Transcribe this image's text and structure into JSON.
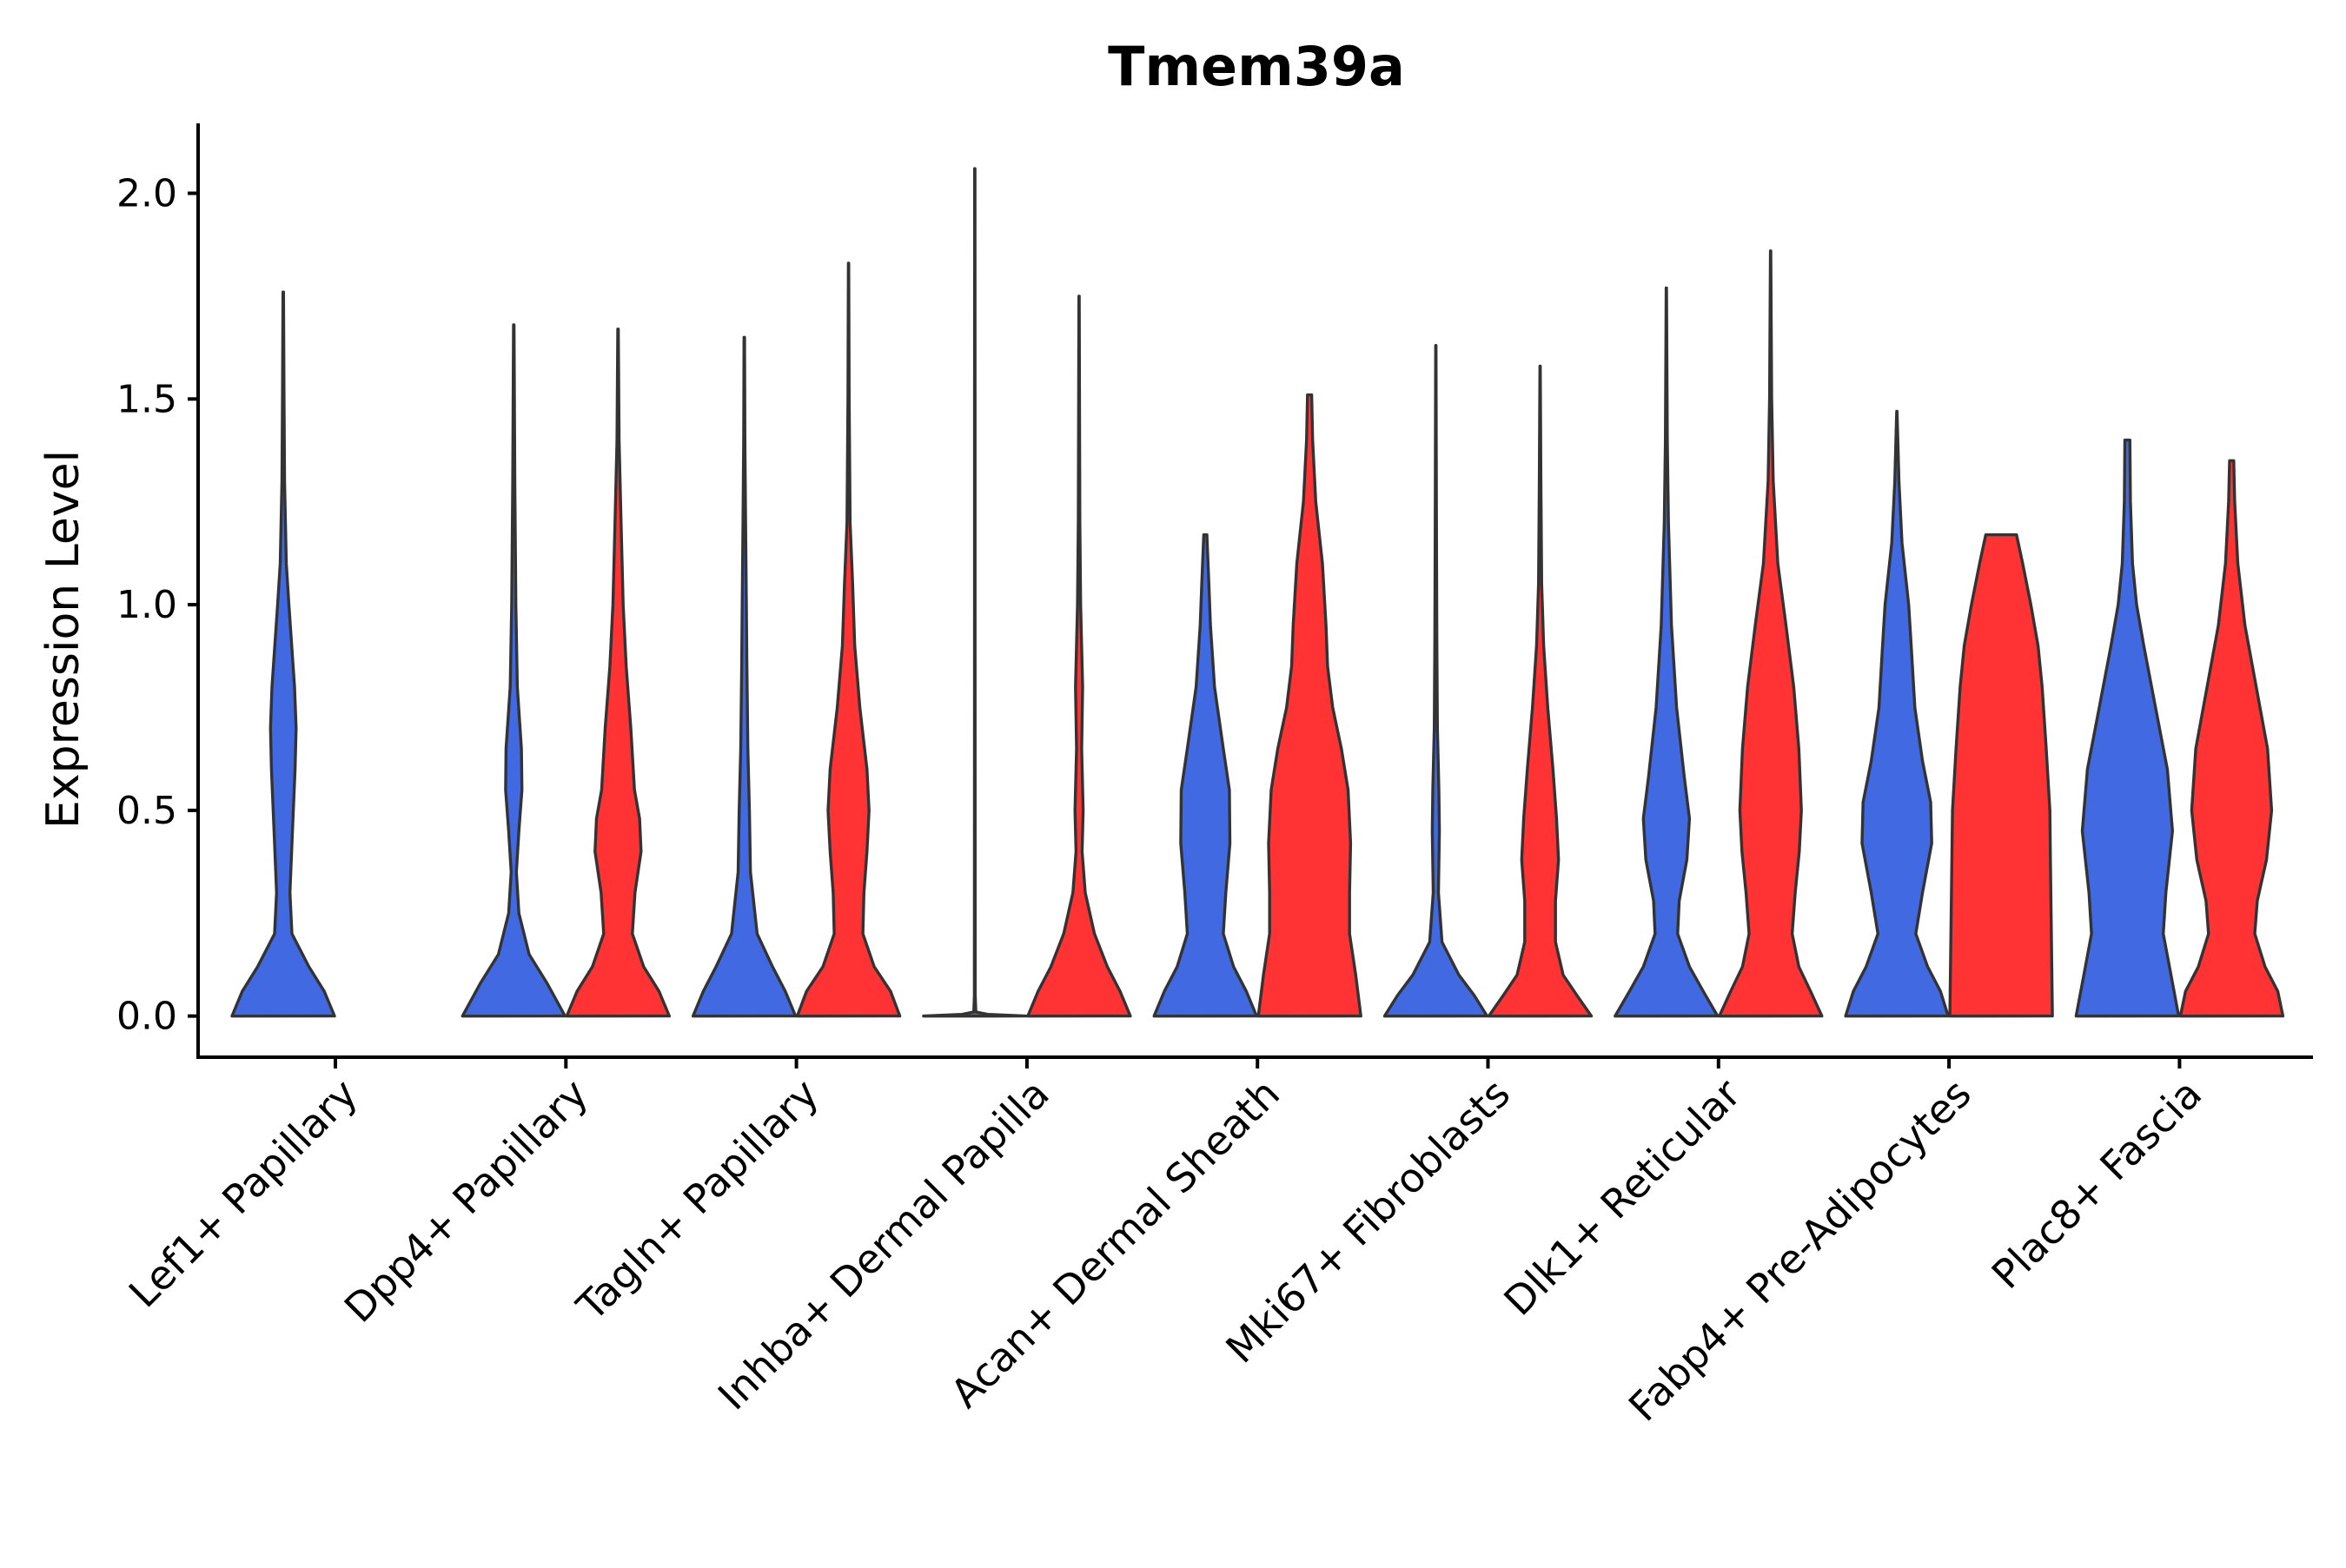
{
  "chart_data": {
    "type": "violin",
    "title": "Tmem39a",
    "xlabel": "",
    "ylabel": "Expression Level",
    "ylim": [
      -0.1,
      2.17
    ],
    "yticks": [
      0.0,
      0.5,
      1.0,
      1.5,
      2.0
    ],
    "ytick_labels": [
      "0.0",
      "0.5",
      "1.0",
      "1.5",
      "2.0"
    ],
    "categories": [
      "Lef1+ Papillary",
      "Dpp4+ Papillary",
      "Tagln+ Papillary",
      "Inhba+ Dermal Papilla",
      "Acan+ Dermal Sheath",
      "Mki67+ Fibroblasts",
      "Dlk1+ Reticular",
      "Fabp4+ Pre-Adipocytes",
      "Plac8+ Fascia"
    ],
    "series": [
      {
        "name": "blue",
        "color": "#4169E1",
        "violins": [
          {
            "max": 1.76,
            "profile": [
              [
                0.0,
                1.0
              ],
              [
                0.06,
                0.8
              ],
              [
                0.12,
                0.5
              ],
              [
                0.2,
                0.17
              ],
              [
                0.3,
                0.13
              ],
              [
                0.45,
                0.18
              ],
              [
                0.6,
                0.23
              ],
              [
                0.7,
                0.25
              ],
              [
                0.8,
                0.22
              ],
              [
                1.0,
                0.11
              ],
              [
                1.1,
                0.06
              ],
              [
                1.3,
                0.025
              ],
              [
                1.5,
                0.015
              ],
              [
                1.76,
                0.005
              ]
            ]
          },
          {
            "max": 1.68,
            "profile": [
              [
                0.0,
                1.0
              ],
              [
                0.08,
                0.65
              ],
              [
                0.15,
                0.3
              ],
              [
                0.25,
                0.1
              ],
              [
                0.35,
                0.05
              ],
              [
                0.45,
                0.1
              ],
              [
                0.55,
                0.16
              ],
              [
                0.65,
                0.15
              ],
              [
                0.8,
                0.07
              ],
              [
                1.0,
                0.04
              ],
              [
                1.3,
                0.02
              ],
              [
                1.68,
                0.005
              ]
            ]
          },
          {
            "max": 1.65,
            "profile": [
              [
                0.0,
                1.0
              ],
              [
                0.06,
                0.8
              ],
              [
                0.12,
                0.55
              ],
              [
                0.2,
                0.25
              ],
              [
                0.35,
                0.12
              ],
              [
                0.5,
                0.1
              ],
              [
                0.65,
                0.07
              ],
              [
                0.85,
                0.05
              ],
              [
                1.0,
                0.04
              ],
              [
                1.2,
                0.025
              ],
              [
                1.4,
                0.012
              ],
              [
                1.65,
                0.005
              ]
            ]
          },
          {
            "max": 2.06,
            "profile": [
              [
                0.0,
                1.0
              ],
              [
                0.004,
                0.25
              ],
              [
                0.01,
                0.02
              ],
              [
                0.05,
                0.008
              ],
              [
                0.5,
                0.006
              ],
              [
                1.0,
                0.005
              ],
              [
                1.5,
                0.005
              ],
              [
                2.06,
                0.004
              ]
            ]
          },
          {
            "max": 1.17,
            "profile": [
              [
                0.0,
                1.0
              ],
              [
                0.06,
                0.8
              ],
              [
                0.12,
                0.55
              ],
              [
                0.2,
                0.35
              ],
              [
                0.3,
                0.4
              ],
              [
                0.42,
                0.48
              ],
              [
                0.55,
                0.47
              ],
              [
                0.65,
                0.35
              ],
              [
                0.8,
                0.18
              ],
              [
                0.95,
                0.1
              ],
              [
                1.05,
                0.07
              ],
              [
                1.17,
                0.03
              ]
            ]
          },
          {
            "max": 1.63,
            "profile": [
              [
                0.0,
                1.0
              ],
              [
                0.05,
                0.75
              ],
              [
                0.1,
                0.45
              ],
              [
                0.18,
                0.12
              ],
              [
                0.3,
                0.05
              ],
              [
                0.45,
                0.07
              ],
              [
                0.55,
                0.06
              ],
              [
                0.7,
                0.03
              ],
              [
                0.9,
                0.02
              ],
              [
                1.2,
                0.012
              ],
              [
                1.63,
                0.004
              ]
            ]
          },
          {
            "max": 1.77,
            "profile": [
              [
                0.0,
                1.0
              ],
              [
                0.06,
                0.72
              ],
              [
                0.12,
                0.45
              ],
              [
                0.2,
                0.22
              ],
              [
                0.28,
                0.25
              ],
              [
                0.38,
                0.4
              ],
              [
                0.48,
                0.45
              ],
              [
                0.58,
                0.35
              ],
              [
                0.75,
                0.2
              ],
              [
                0.95,
                0.1
              ],
              [
                1.2,
                0.04
              ],
              [
                1.4,
                0.018
              ],
              [
                1.77,
                0.004
              ]
            ]
          },
          {
            "max": 1.47,
            "profile": [
              [
                0.0,
                1.0
              ],
              [
                0.06,
                0.85
              ],
              [
                0.12,
                0.6
              ],
              [
                0.2,
                0.37
              ],
              [
                0.3,
                0.5
              ],
              [
                0.42,
                0.68
              ],
              [
                0.52,
                0.66
              ],
              [
                0.62,
                0.5
              ],
              [
                0.75,
                0.35
              ],
              [
                0.9,
                0.28
              ],
              [
                1.0,
                0.23
              ],
              [
                1.15,
                0.1
              ],
              [
                1.3,
                0.04
              ],
              [
                1.47,
                0.004
              ]
            ]
          },
          {
            "max": 1.4,
            "profile": [
              [
                0.0,
                1.0
              ],
              [
                0.1,
                0.85
              ],
              [
                0.2,
                0.7
              ],
              [
                0.3,
                0.75
              ],
              [
                0.45,
                0.88
              ],
              [
                0.6,
                0.78
              ],
              [
                0.75,
                0.55
              ],
              [
                0.9,
                0.32
              ],
              [
                1.0,
                0.18
              ],
              [
                1.1,
                0.1
              ],
              [
                1.25,
                0.06
              ],
              [
                1.4,
                0.05
              ]
            ]
          }
        ]
      },
      {
        "name": "red",
        "color": "#FF3333",
        "violins": [
          null,
          {
            "max": 1.67,
            "profile": [
              [
                0.0,
                1.0
              ],
              [
                0.06,
                0.8
              ],
              [
                0.12,
                0.5
              ],
              [
                0.2,
                0.28
              ],
              [
                0.3,
                0.33
              ],
              [
                0.4,
                0.45
              ],
              [
                0.48,
                0.42
              ],
              [
                0.55,
                0.32
              ],
              [
                0.7,
                0.25
              ],
              [
                0.85,
                0.16
              ],
              [
                1.0,
                0.1
              ],
              [
                1.2,
                0.06
              ],
              [
                1.4,
                0.02
              ],
              [
                1.67,
                0.005
              ]
            ]
          },
          {
            "max": 1.83,
            "profile": [
              [
                0.0,
                1.0
              ],
              [
                0.06,
                0.82
              ],
              [
                0.12,
                0.5
              ],
              [
                0.2,
                0.28
              ],
              [
                0.3,
                0.3
              ],
              [
                0.4,
                0.36
              ],
              [
                0.5,
                0.4
              ],
              [
                0.6,
                0.36
              ],
              [
                0.75,
                0.22
              ],
              [
                0.9,
                0.12
              ],
              [
                1.05,
                0.08
              ],
              [
                1.2,
                0.03
              ],
              [
                1.5,
                0.012
              ],
              [
                1.83,
                0.004
              ]
            ]
          },
          {
            "max": 1.75,
            "profile": [
              [
                0.0,
                1.0
              ],
              [
                0.06,
                0.8
              ],
              [
                0.12,
                0.55
              ],
              [
                0.2,
                0.3
              ],
              [
                0.3,
                0.12
              ],
              [
                0.4,
                0.06
              ],
              [
                0.5,
                0.08
              ],
              [
                0.65,
                0.05
              ],
              [
                0.8,
                0.07
              ],
              [
                1.0,
                0.03
              ],
              [
                1.2,
                0.015
              ],
              [
                1.5,
                0.008
              ],
              [
                1.75,
                0.004
              ]
            ]
          },
          {
            "max": 1.51,
            "profile": [
              [
                0.0,
                1.0
              ],
              [
                0.1,
                0.9
              ],
              [
                0.2,
                0.78
              ],
              [
                0.3,
                0.78
              ],
              [
                0.42,
                0.8
              ],
              [
                0.55,
                0.75
              ],
              [
                0.65,
                0.62
              ],
              [
                0.75,
                0.45
              ],
              [
                0.85,
                0.35
              ],
              [
                0.95,
                0.32
              ],
              [
                1.1,
                0.25
              ],
              [
                1.25,
                0.12
              ],
              [
                1.4,
                0.06
              ],
              [
                1.51,
                0.04
              ]
            ]
          },
          {
            "max": 1.58,
            "profile": [
              [
                0.0,
                1.0
              ],
              [
                0.05,
                0.72
              ],
              [
                0.1,
                0.45
              ],
              [
                0.18,
                0.3
              ],
              [
                0.28,
                0.3
              ],
              [
                0.38,
                0.36
              ],
              [
                0.48,
                0.32
              ],
              [
                0.6,
                0.25
              ],
              [
                0.75,
                0.15
              ],
              [
                0.9,
                0.07
              ],
              [
                1.05,
                0.03
              ],
              [
                1.3,
                0.015
              ],
              [
                1.58,
                0.004
              ]
            ]
          },
          {
            "max": 1.86,
            "profile": [
              [
                0.0,
                1.0
              ],
              [
                0.06,
                0.78
              ],
              [
                0.12,
                0.55
              ],
              [
                0.2,
                0.42
              ],
              [
                0.3,
                0.48
              ],
              [
                0.4,
                0.56
              ],
              [
                0.5,
                0.6
              ],
              [
                0.65,
                0.55
              ],
              [
                0.8,
                0.45
              ],
              [
                0.95,
                0.3
              ],
              [
                1.1,
                0.14
              ],
              [
                1.3,
                0.05
              ],
              [
                1.5,
                0.02
              ],
              [
                1.86,
                0.004
              ]
            ]
          },
          {
            "max": 1.17,
            "profile": [
              [
                0.0,
                1.0
              ],
              [
                0.2,
                0.98
              ],
              [
                0.4,
                0.96
              ],
              [
                0.5,
                0.95
              ],
              [
                0.65,
                0.88
              ],
              [
                0.8,
                0.8
              ],
              [
                0.9,
                0.72
              ],
              [
                1.0,
                0.58
              ],
              [
                1.1,
                0.42
              ],
              [
                1.17,
                0.3
              ]
            ]
          },
          {
            "max": 1.35,
            "profile": [
              [
                0.0,
                1.0
              ],
              [
                0.06,
                0.9
              ],
              [
                0.12,
                0.65
              ],
              [
                0.2,
                0.45
              ],
              [
                0.28,
                0.5
              ],
              [
                0.38,
                0.68
              ],
              [
                0.5,
                0.78
              ],
              [
                0.65,
                0.7
              ],
              [
                0.8,
                0.48
              ],
              [
                0.95,
                0.26
              ],
              [
                1.1,
                0.12
              ],
              [
                1.25,
                0.06
              ],
              [
                1.35,
                0.04
              ]
            ]
          }
        ]
      }
    ]
  }
}
